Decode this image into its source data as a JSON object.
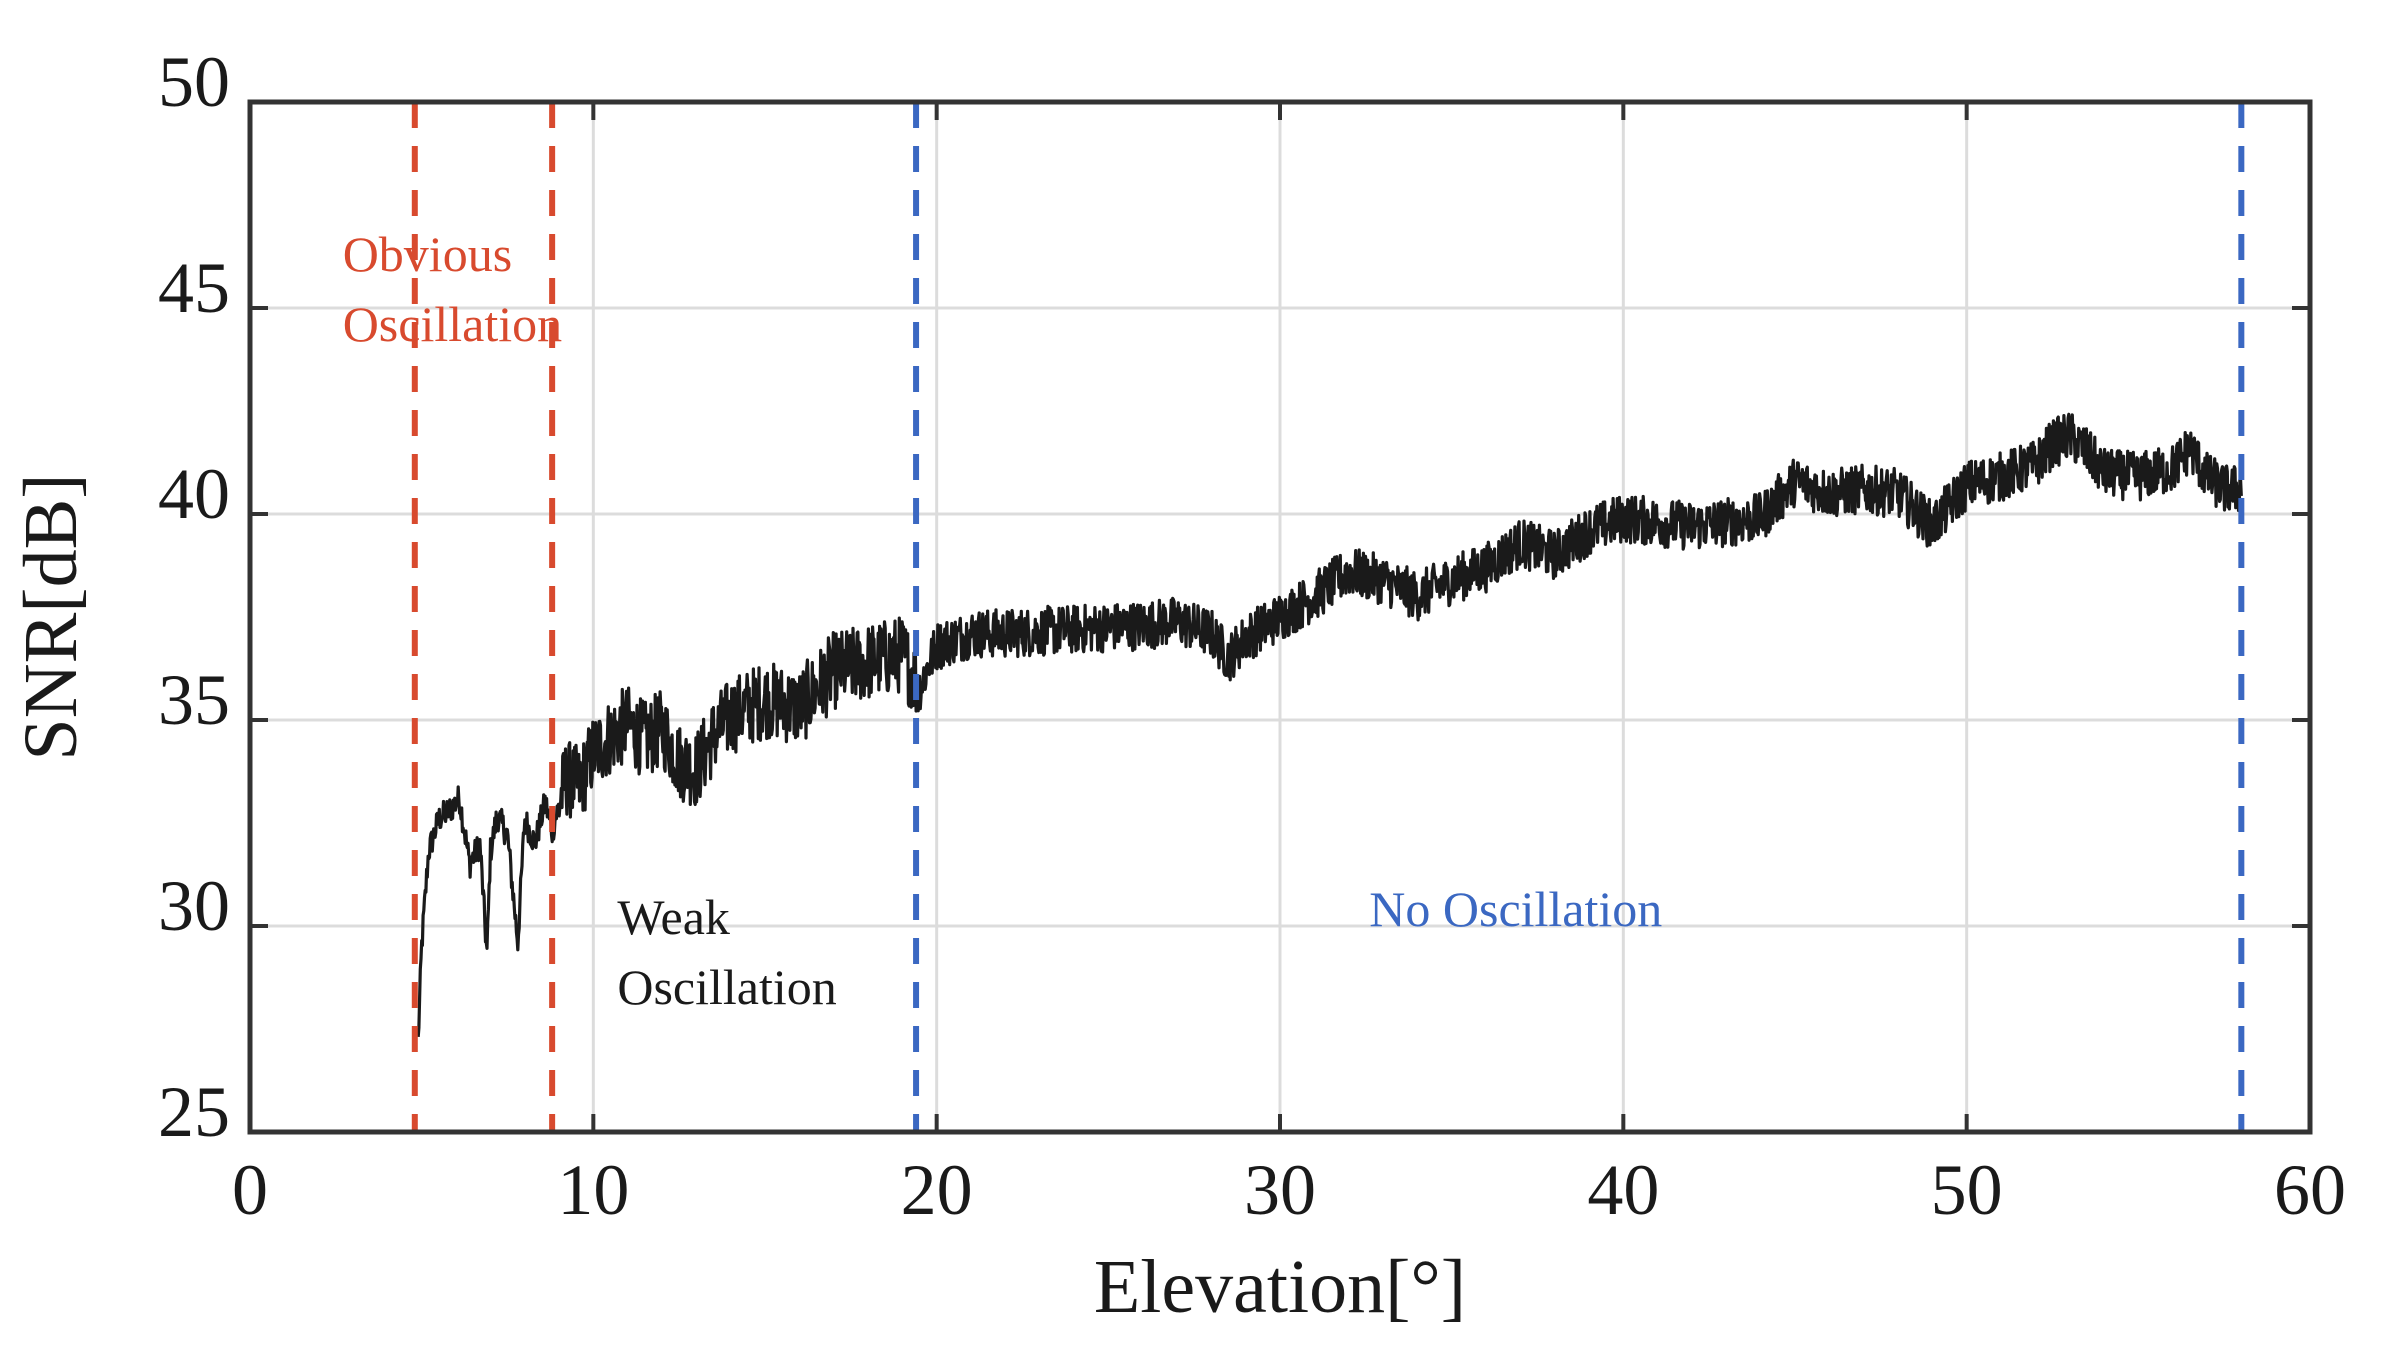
{
  "chart_data": {
    "type": "line",
    "title": "",
    "xlabel": "Elevation[°]",
    "ylabel": "SNR[dB]",
    "xlim": [
      0,
      60
    ],
    "ylim": [
      25,
      50
    ],
    "xticks": [
      0,
      10,
      20,
      30,
      40,
      50,
      60
    ],
    "yticks": [
      25,
      30,
      35,
      40,
      45,
      50
    ],
    "grid": true,
    "series": [
      {
        "name": "SNR",
        "color": "#1a1a1a",
        "x": [
          4.9,
          5.0,
          5.2,
          5.5,
          5.8,
          6.1,
          6.4,
          6.7,
          6.9,
          7.0,
          7.2,
          7.5,
          7.8,
          8.0,
          8.3,
          8.6,
          8.8,
          9.2,
          9.6,
          10.0,
          10.5,
          11.0,
          11.5,
          12.0,
          12.5,
          13.0,
          13.5,
          14.0,
          15.0,
          16.0,
          17.0,
          18.0,
          19.0,
          19.5,
          20.0,
          21.0,
          22.0,
          24.0,
          26.0,
          27.0,
          28.0,
          28.5,
          29.0,
          30.0,
          31.0,
          32.0,
          33.0,
          34.0,
          35.0,
          36.0,
          37.0,
          38.0,
          39.0,
          40.0,
          41.0,
          42.0,
          43.0,
          44.0,
          45.0,
          46.0,
          47.0,
          48.0,
          48.5,
          49.0,
          49.5,
          50.0,
          51.0,
          52.0,
          52.5,
          53.0,
          53.5,
          54.0,
          55.0,
          56.0,
          56.5,
          57.0,
          57.5,
          58.0
        ],
        "y": [
          27.2,
          29.5,
          31.8,
          32.6,
          32.8,
          33.1,
          31.5,
          32.0,
          29.3,
          31.8,
          32.7,
          32.2,
          29.6,
          32.6,
          32.0,
          33.0,
          32.3,
          33.6,
          33.4,
          34.2,
          34.6,
          34.9,
          34.5,
          34.8,
          34.0,
          33.8,
          34.6,
          35.1,
          35.5,
          35.3,
          36.2,
          36.4,
          36.6,
          35.8,
          36.8,
          37.1,
          37.1,
          37.2,
          37.3,
          37.4,
          37.1,
          36.5,
          37.0,
          37.5,
          38.0,
          38.6,
          38.4,
          38.0,
          38.4,
          38.7,
          39.3,
          39.0,
          39.6,
          39.9,
          39.8,
          39.7,
          39.8,
          39.9,
          40.8,
          40.5,
          40.6,
          40.5,
          40.1,
          39.7,
          40.2,
          40.7,
          40.9,
          41.2,
          41.7,
          41.9,
          41.5,
          41.0,
          40.9,
          41.1,
          41.6,
          40.9,
          40.6,
          40.6
        ]
      }
    ],
    "reference_lines": [
      {
        "x": 4.8,
        "color": "#d84a2e",
        "style": "dashed"
      },
      {
        "x": 8.8,
        "color": "#d84a2e",
        "style": "dashed"
      },
      {
        "x": 19.4,
        "color": "#3b68c2",
        "style": "dashed"
      },
      {
        "x": 58.0,
        "color": "#3b68c2",
        "style": "dashed"
      }
    ],
    "annotations": [
      {
        "lines": [
          "Obvious",
          "Oscillation"
        ],
        "x": 2.7,
        "y": 45.9,
        "color": "#d84a2e"
      },
      {
        "lines": [
          "Weak",
          "Oscillation"
        ],
        "x": 10.7,
        "y": 29.8,
        "color": "#1a1a1a"
      },
      {
        "lines": [
          "No Oscillation"
        ],
        "x": 32.6,
        "y": 30.0,
        "color": "#3b68c2"
      }
    ]
  }
}
